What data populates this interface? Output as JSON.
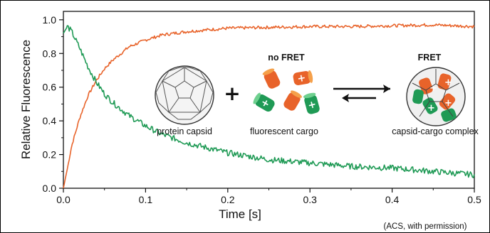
{
  "chart_data": {
    "type": "line",
    "xlabel": "Time [s]",
    "ylabel": "Relative Fluorescence",
    "xlim": [
      0,
      0.5
    ],
    "ylim": [
      0,
      1.05
    ],
    "xticks": [
      "0.0",
      "0.1",
      "0.2",
      "0.3",
      "0.4",
      "0.5"
    ],
    "yticks": [
      "0.0",
      "0.2",
      "0.4",
      "0.6",
      "0.8",
      "1.0"
    ],
    "grid": false,
    "series": [
      {
        "color": "#e8632a",
        "x": [
          0,
          0.005,
          0.01,
          0.02,
          0.03,
          0.04,
          0.05,
          0.06,
          0.08,
          0.1,
          0.12,
          0.15,
          0.2,
          0.25,
          0.3,
          0.35,
          0.4,
          0.45,
          0.5
        ],
        "y": [
          0.0,
          0.12,
          0.25,
          0.42,
          0.55,
          0.64,
          0.71,
          0.76,
          0.84,
          0.88,
          0.91,
          0.93,
          0.95,
          0.955,
          0.96,
          0.96,
          0.965,
          0.97,
          0.96
        ]
      },
      {
        "color": "#1f9a55",
        "x": [
          0,
          0.005,
          0.01,
          0.02,
          0.03,
          0.04,
          0.05,
          0.06,
          0.08,
          0.1,
          0.12,
          0.15,
          0.2,
          0.25,
          0.3,
          0.35,
          0.4,
          0.45,
          0.5
        ],
        "y": [
          0.92,
          0.96,
          0.93,
          0.83,
          0.72,
          0.63,
          0.56,
          0.51,
          0.43,
          0.37,
          0.32,
          0.27,
          0.21,
          0.17,
          0.15,
          0.13,
          0.12,
          0.1,
          0.08
        ]
      }
    ],
    "annotations": {
      "capsid": "protein capsid",
      "plus": "+",
      "no_fret": "no FRET",
      "cargo": "fluorescent cargo",
      "fret": "FRET",
      "complex": "capsid-cargo complex"
    }
  },
  "credit": "(ACS, with permission)",
  "colors": {
    "orange": "#e8632a",
    "green": "#1f9a55",
    "dark": "#2b2b2b"
  }
}
